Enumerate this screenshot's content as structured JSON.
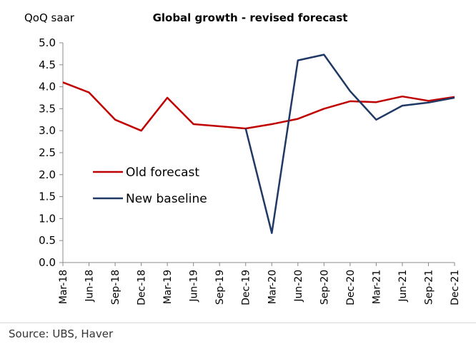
{
  "chart_data": {
    "type": "line",
    "title": "Global growth - revised forecast",
    "ylabel": "QoQ saar",
    "xlabel": "",
    "ylim": [
      0,
      5
    ],
    "yticks": [
      "0.0",
      "0.5",
      "1.0",
      "1.5",
      "2.0",
      "2.5",
      "3.0",
      "3.5",
      "4.0",
      "4.5",
      "5.0"
    ],
    "categories": [
      "Mar-18",
      "Jun-18",
      "Sep-18",
      "Dec-18",
      "Mar-19",
      "Jun-19",
      "Sep-19",
      "Dec-19",
      "Mar-20",
      "Jun-20",
      "Sep-20",
      "Dec-20",
      "Mar-21",
      "Jun-21",
      "Sep-21",
      "Dec-21"
    ],
    "series": [
      {
        "name": "Old forecast",
        "color": "#c00000",
        "values": [
          4.1,
          3.87,
          3.25,
          3.0,
          3.75,
          3.15,
          3.1,
          3.05,
          3.15,
          3.27,
          3.5,
          3.67,
          3.65,
          3.78,
          3.68,
          3.77
        ]
      },
      {
        "name": "New baseline",
        "color": "#1f3864",
        "values": [
          null,
          null,
          null,
          null,
          null,
          null,
          null,
          3.05,
          0.67,
          4.6,
          4.73,
          3.9,
          3.25,
          3.57,
          3.64,
          3.75
        ]
      }
    ],
    "grid": false,
    "legend_position": "center-left"
  },
  "footer": {
    "source": "Source:  UBS, Haver"
  }
}
